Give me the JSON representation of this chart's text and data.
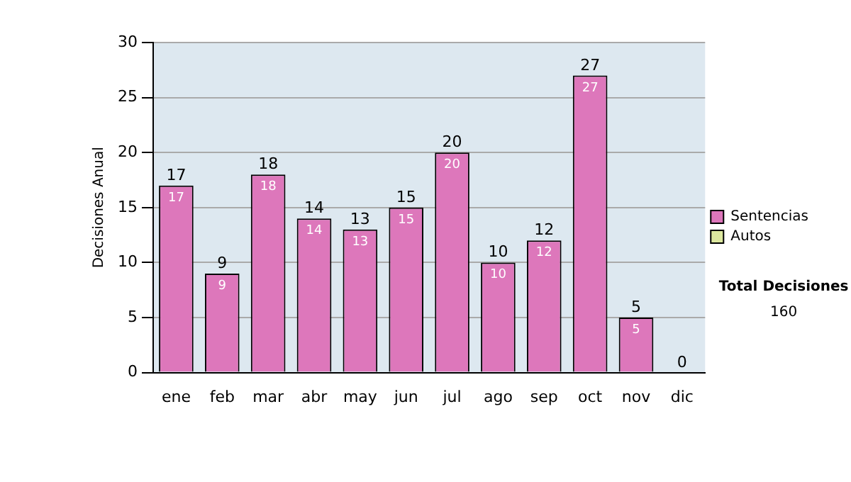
{
  "chart_data": {
    "type": "bar",
    "stacked": true,
    "ylabel": "Decisiones Anual",
    "categories": [
      "ene",
      "feb",
      "mar",
      "abr",
      "may",
      "jun",
      "jul",
      "ago",
      "sep",
      "oct",
      "nov",
      "dic"
    ],
    "series": [
      {
        "name": "Sentencias",
        "color": "#dd77bb",
        "values": [
          17,
          9,
          18,
          14,
          13,
          15,
          20,
          10,
          12,
          27,
          5,
          0
        ],
        "value_labels": [
          "17",
          "9",
          "18",
          "14",
          "13",
          "15",
          "20",
          "10",
          "12",
          "27",
          "5",
          null
        ]
      },
      {
        "name": "Autos",
        "color": "#dde8a0",
        "values": [
          0,
          0,
          0,
          0,
          0,
          0,
          0,
          0,
          0,
          0,
          0,
          0
        ]
      }
    ],
    "totals": [
      "17",
      "9",
      "18",
      "14",
      "13",
      "15",
      "20",
      "10",
      "12",
      "27",
      "5",
      "0"
    ],
    "ylim": [
      0,
      30
    ],
    "yticks": [
      0,
      5,
      10,
      15,
      20,
      25,
      30
    ],
    "grid": "y",
    "legend": "right",
    "annotations": [
      "Total Decisiones",
      "160"
    ]
  }
}
